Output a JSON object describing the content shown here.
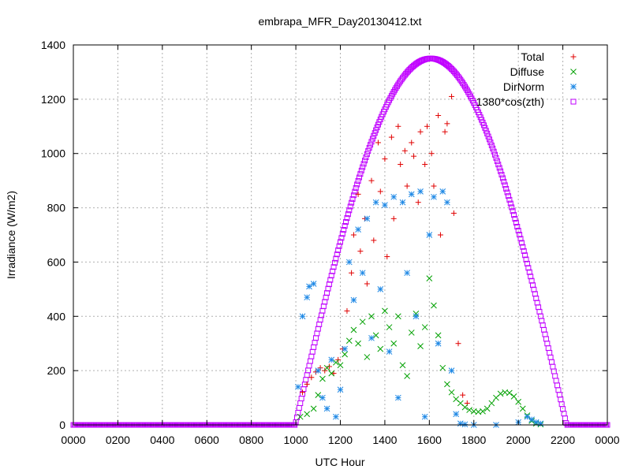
{
  "chart_data": {
    "type": "scatter",
    "title": "embrapa_MFR_Day20130412.txt",
    "xlabel": "UTC Hour",
    "ylabel": "Irradiance (W/m2)",
    "xlim": [
      0,
      24
    ],
    "ylim": [
      0,
      1400
    ],
    "x_ticks": [
      "0000",
      "0200",
      "0400",
      "0600",
      "0800",
      "1000",
      "1200",
      "1400",
      "1600",
      "1800",
      "2000",
      "2200",
      "0000"
    ],
    "y_ticks": [
      "0",
      "200",
      "400",
      "600",
      "800",
      "1000",
      "1200",
      "1400"
    ],
    "grid": true,
    "legend_position": "top-right",
    "series": [
      {
        "name": "Total",
        "color": "#e00000",
        "marker": "plus",
        "points": [
          [
            10.3,
            120
          ],
          [
            10.5,
            150
          ],
          [
            10.7,
            175
          ],
          [
            10.9,
            195
          ],
          [
            11.1,
            210
          ],
          [
            11.3,
            200
          ],
          [
            11.5,
            215
          ],
          [
            11.7,
            190
          ],
          [
            11.9,
            240
          ],
          [
            12.1,
            280
          ],
          [
            12.3,
            420
          ],
          [
            12.5,
            560
          ],
          [
            12.6,
            700
          ],
          [
            12.8,
            850
          ],
          [
            12.9,
            640
          ],
          [
            13.1,
            760
          ],
          [
            13.2,
            520
          ],
          [
            13.4,
            900
          ],
          [
            13.5,
            680
          ],
          [
            13.7,
            1040
          ],
          [
            13.8,
            860
          ],
          [
            14.0,
            980
          ],
          [
            14.1,
            620
          ],
          [
            14.3,
            1060
          ],
          [
            14.4,
            760
          ],
          [
            14.6,
            1100
          ],
          [
            14.7,
            960
          ],
          [
            14.9,
            1010
          ],
          [
            15.0,
            880
          ],
          [
            15.2,
            1040
          ],
          [
            15.3,
            990
          ],
          [
            15.5,
            820
          ],
          [
            15.6,
            1080
          ],
          [
            15.8,
            960
          ],
          [
            15.9,
            1100
          ],
          [
            16.1,
            1000
          ],
          [
            16.2,
            880
          ],
          [
            16.4,
            1140
          ],
          [
            16.5,
            700
          ],
          [
            16.7,
            1080
          ],
          [
            16.8,
            1110
          ],
          [
            17.0,
            1210
          ],
          [
            17.1,
            780
          ],
          [
            17.3,
            300
          ],
          [
            17.5,
            110
          ],
          [
            17.7,
            80
          ]
        ]
      },
      {
        "name": "Diffuse",
        "color": "#00a000",
        "marker": "cross",
        "points": [
          [
            10.2,
            30
          ],
          [
            10.5,
            40
          ],
          [
            10.8,
            60
          ],
          [
            11.0,
            110
          ],
          [
            11.2,
            170
          ],
          [
            11.4,
            210
          ],
          [
            11.6,
            190
          ],
          [
            11.8,
            230
          ],
          [
            12.0,
            220
          ],
          [
            12.2,
            260
          ],
          [
            12.4,
            310
          ],
          [
            12.6,
            350
          ],
          [
            12.8,
            300
          ],
          [
            13.0,
            380
          ],
          [
            13.2,
            250
          ],
          [
            13.4,
            400
          ],
          [
            13.6,
            330
          ],
          [
            13.8,
            280
          ],
          [
            14.0,
            420
          ],
          [
            14.2,
            360
          ],
          [
            14.4,
            300
          ],
          [
            14.6,
            400
          ],
          [
            14.8,
            220
          ],
          [
            15.0,
            180
          ],
          [
            15.2,
            340
          ],
          [
            15.4,
            410
          ],
          [
            15.6,
            290
          ],
          [
            15.8,
            360
          ],
          [
            16.0,
            540
          ],
          [
            16.2,
            440
          ],
          [
            16.4,
            330
          ],
          [
            16.6,
            210
          ],
          [
            16.8,
            150
          ],
          [
            17.0,
            120
          ],
          [
            17.2,
            95
          ],
          [
            17.4,
            80
          ],
          [
            17.6,
            65
          ],
          [
            17.8,
            55
          ],
          [
            18.0,
            50
          ],
          [
            18.2,
            48
          ],
          [
            18.4,
            50
          ],
          [
            18.6,
            60
          ],
          [
            18.8,
            80
          ],
          [
            19.0,
            100
          ],
          [
            19.2,
            115
          ],
          [
            19.4,
            120
          ],
          [
            19.6,
            118
          ],
          [
            19.8,
            105
          ],
          [
            20.0,
            85
          ],
          [
            20.2,
            60
          ],
          [
            20.4,
            35
          ],
          [
            20.6,
            15
          ],
          [
            20.8,
            5
          ],
          [
            21.0,
            2
          ]
        ]
      },
      {
        "name": "DirNorm",
        "color": "#1e88e5",
        "marker": "star",
        "points": [
          [
            10.1,
            140
          ],
          [
            10.3,
            400
          ],
          [
            10.5,
            470
          ],
          [
            10.6,
            510
          ],
          [
            10.8,
            520
          ],
          [
            11.0,
            200
          ],
          [
            11.2,
            100
          ],
          [
            11.4,
            60
          ],
          [
            11.6,
            240
          ],
          [
            11.8,
            30
          ],
          [
            12.0,
            130
          ],
          [
            12.2,
            280
          ],
          [
            12.4,
            600
          ],
          [
            12.6,
            460
          ],
          [
            12.8,
            720
          ],
          [
            13.0,
            560
          ],
          [
            13.2,
            760
          ],
          [
            13.4,
            320
          ],
          [
            13.6,
            820
          ],
          [
            13.8,
            500
          ],
          [
            14.0,
            810
          ],
          [
            14.2,
            270
          ],
          [
            14.4,
            840
          ],
          [
            14.6,
            100
          ],
          [
            14.8,
            820
          ],
          [
            15.0,
            560
          ],
          [
            15.2,
            850
          ],
          [
            15.4,
            400
          ],
          [
            15.6,
            860
          ],
          [
            15.8,
            30
          ],
          [
            16.0,
            700
          ],
          [
            16.2,
            840
          ],
          [
            16.4,
            300
          ],
          [
            16.6,
            860
          ],
          [
            16.8,
            820
          ],
          [
            17.0,
            200
          ],
          [
            17.2,
            40
          ],
          [
            17.4,
            5
          ],
          [
            17.6,
            2
          ],
          [
            18.0,
            0
          ],
          [
            19.0,
            0
          ],
          [
            20.0,
            10
          ],
          [
            20.4,
            30
          ],
          [
            20.6,
            20
          ],
          [
            20.8,
            10
          ],
          [
            21.0,
            5
          ]
        ]
      },
      {
        "name": "1380*cos(zth)",
        "color": "#c000ff",
        "marker": "square",
        "sunrise": 9.97,
        "sunset": 22.17,
        "peak": 1350,
        "peak_hour": 16.07
      }
    ]
  }
}
